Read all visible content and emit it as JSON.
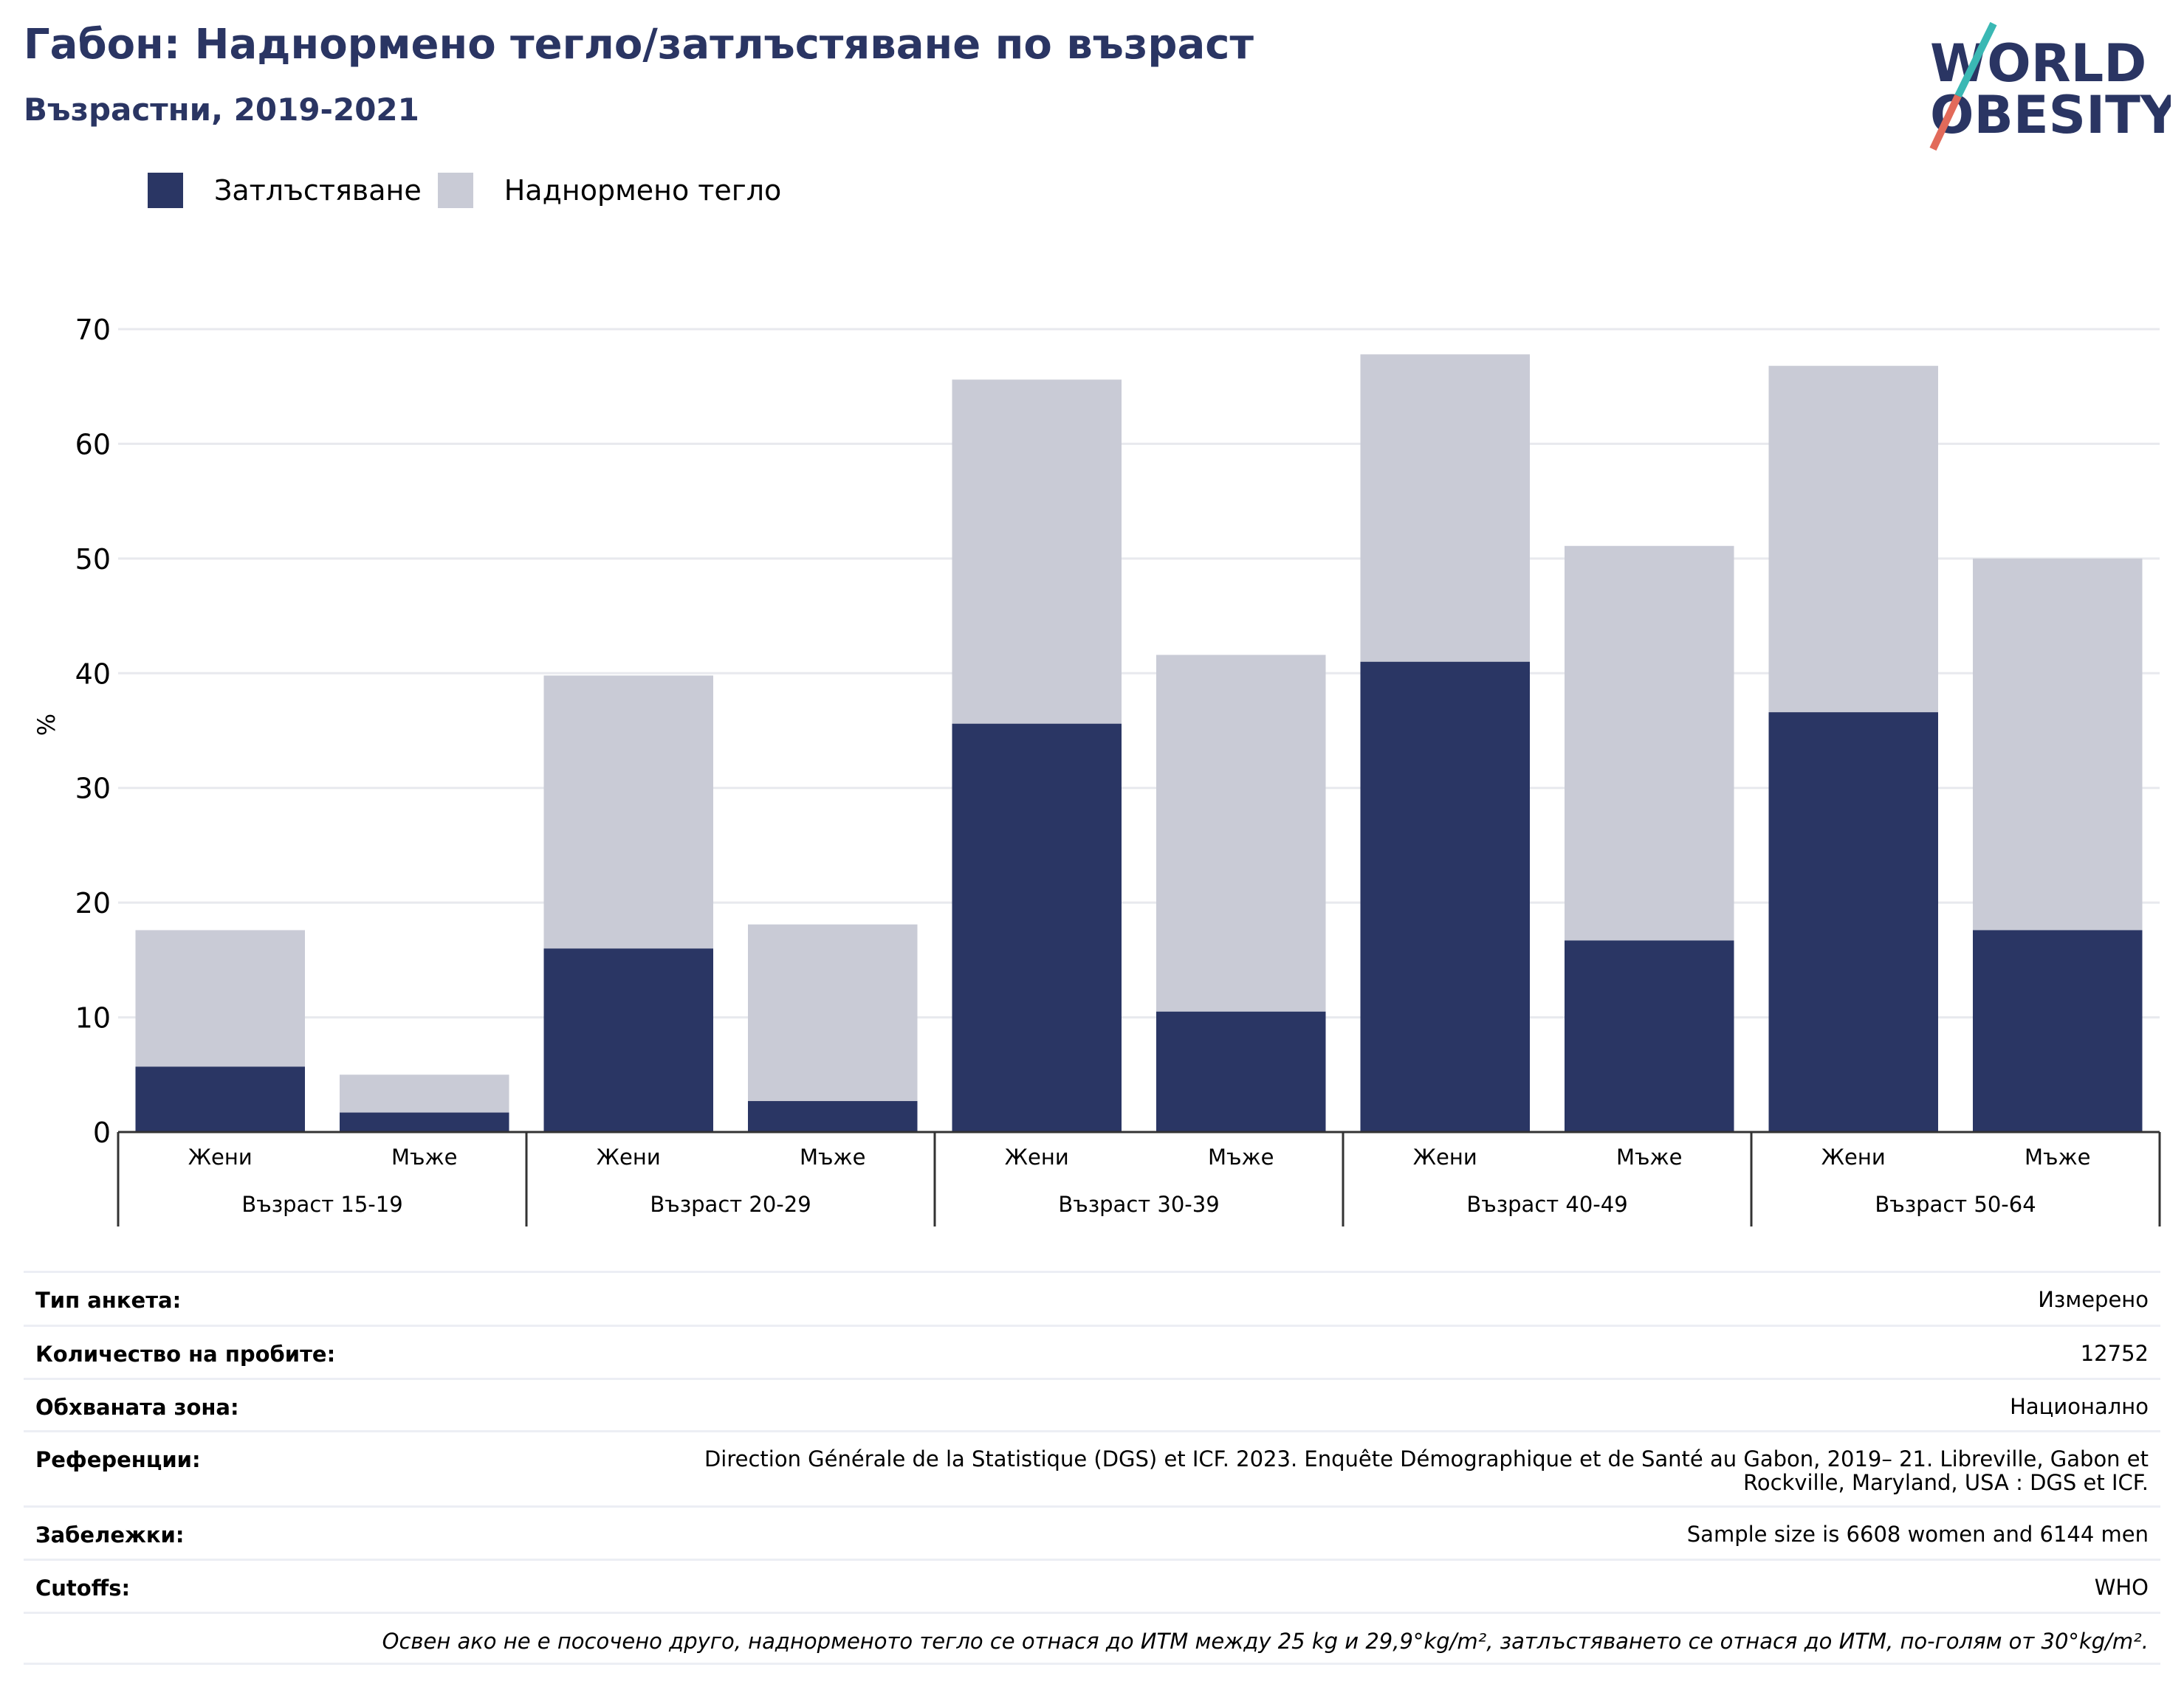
{
  "title": "Габон: Наднормено тегло/затлъстяване по възраст",
  "subtitle": "Възрастни, 2019-2021",
  "logo": {
    "line1": "WORLD",
    "line2": "OBESITY"
  },
  "legend": {
    "obesity": "Затлъстяване",
    "overweight": "Наднормено тегло"
  },
  "colors": {
    "obesity": "#2a3664",
    "overweight": "#c9cbd6",
    "brand": "#2a3563",
    "accent_teal": "#3ab8b4",
    "accent_coral": "#e26a5a"
  },
  "chart_data": {
    "type": "bar",
    "stacked": true,
    "ylabel": "%",
    "ylim": [
      0,
      70
    ],
    "yticks": [
      0,
      10,
      20,
      30,
      40,
      50,
      60,
      70
    ],
    "grid": true,
    "groups": [
      "Възраст 15-19",
      "Възраст 20-29",
      "Възраст 30-39",
      "Възраст 40-49",
      "Възраст 50-64"
    ],
    "sexes": [
      "Жени",
      "Мъже"
    ],
    "series": [
      {
        "name": "Затлъстяване",
        "values": [
          5.7,
          1.7,
          16.0,
          2.7,
          35.6,
          10.5,
          41.0,
          16.7,
          36.6,
          17.6
        ]
      },
      {
        "name": "Наднормено тегло",
        "values": [
          11.9,
          3.3,
          23.8,
          15.4,
          30.0,
          31.1,
          26.8,
          34.4,
          30.2,
          32.4
        ]
      }
    ]
  },
  "meta": [
    {
      "key": "Тип анкета:",
      "value": "Измерено"
    },
    {
      "key": "Количество на пробите:",
      "value": "12752"
    },
    {
      "key": "Обхваната зона:",
      "value": "Национално"
    },
    {
      "key": "Референции:",
      "value": "Direction Générale de la Statistique (DGS) et ICF. 2023. Enquête Démographique et de Santé au Gabon, 2019– 21. Libreville, Gabon et Rockville, Maryland, USA : DGS et ICF."
    },
    {
      "key": "Забележки:",
      "value": "Sample size is 6608 women and 6144 men"
    },
    {
      "key": "Cutoffs:",
      "value": "WHO"
    }
  ],
  "note": "Освен ако не е посочено друго, наднорменото тегло се отнася до ИТМ между 25 kg и 29,9°kg/m², затлъстяването се отнася до ИТМ, по-голям от 30°kg/m²."
}
